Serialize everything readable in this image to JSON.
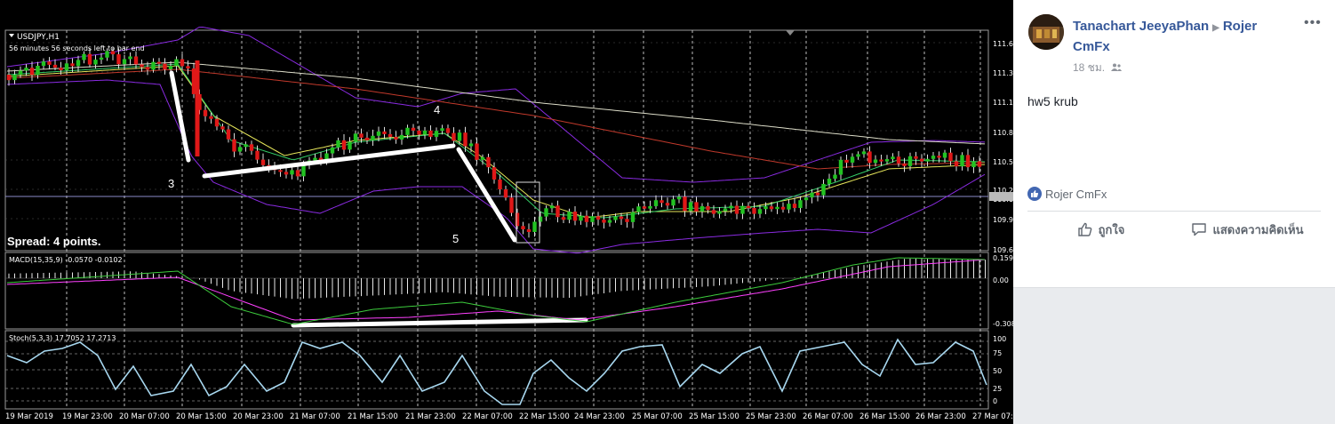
{
  "chart": {
    "symbol": "USDJPY,H1",
    "bar_timer": "56 minutes 56 seconds left to bar end",
    "spread": "Spread: 4 points.",
    "macd_label": "MACD(15,35,9) -0.0570 -0.0102",
    "stoch_label": "Stoch(5,3,3) 17.7052 17.2713",
    "wave_labels": [
      "3",
      "4",
      "5"
    ],
    "price_axis": [
      "111.6",
      "111.3",
      "111.1",
      "110.8",
      "110.5",
      "110.2",
      "110.1",
      "109.9",
      "109.6"
    ],
    "macd_axis": [
      "0.159",
      "0.00",
      "-0.308"
    ],
    "stoch_axis": [
      "100",
      "75",
      "50",
      "25",
      "0"
    ],
    "time_axis": [
      "19 Mar 2019",
      "19 Mar 23:00",
      "20 Mar 07:00",
      "20 Mar 15:00",
      "20 Mar 23:00",
      "21 Mar 07:00",
      "21 Mar 15:00",
      "21 Mar 23:00",
      "22 Mar 07:00",
      "22 Mar 15:00",
      "24 Mar 23:00",
      "25 Mar 07:00",
      "25 Mar 15:00",
      "25 Mar 23:00",
      "26 Mar 07:00",
      "26 Mar 15:00",
      "26 Mar 23:00",
      "27 Mar 07:00"
    ],
    "colors": {
      "bull": "#22c322",
      "bear": "#e01818",
      "bands": "#8a2be2",
      "ma_slow": "#dcdcc8",
      "ma_mid": "#c0392b",
      "ma_fast": "#e6e65a",
      "macd_signal": "#ff40ff",
      "macd_line": "#3ccb3c",
      "stoch": "#a8d8f0"
    }
  },
  "post": {
    "author": "Tanachart JeeyaPhan",
    "page": "Rojer CmFx",
    "time": "18 ชม.",
    "text": "hw5 krub",
    "reaction_name": "Rojer CmFx",
    "like_label": "ถูกใจ",
    "comment_label": "แสดงความคิดเห็น"
  }
}
